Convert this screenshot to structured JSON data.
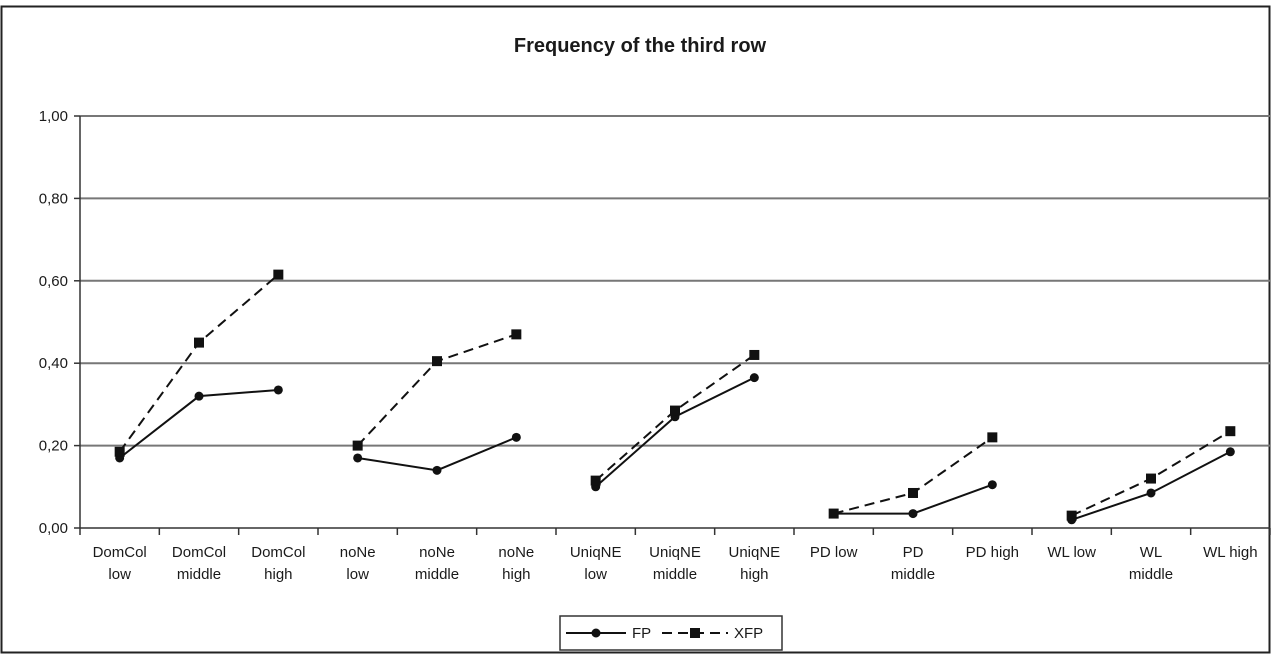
{
  "chart_data": {
    "type": "line",
    "title": "Frequency of the third row",
    "xlabel": "",
    "ylabel": "",
    "ylim": [
      0,
      1
    ],
    "yticks": [
      "0,00",
      "0,20",
      "0,40",
      "0,60",
      "0,80",
      "1,00"
    ],
    "ytick_values": [
      0,
      0.2,
      0.4,
      0.6,
      0.8,
      1.0
    ],
    "grid": true,
    "legend_position": "bottom-center",
    "categories": [
      [
        "DomCol",
        "low"
      ],
      [
        "DomCol",
        "middle"
      ],
      [
        "DomCol",
        "high"
      ],
      [
        "noNe",
        "low"
      ],
      [
        "noNe",
        "middle"
      ],
      [
        "noNe",
        "high"
      ],
      [
        "UniqNE",
        "low"
      ],
      [
        "UniqNE",
        "middle"
      ],
      [
        "UniqNE",
        "high"
      ],
      [
        "PD low"
      ],
      [
        "PD",
        "middle"
      ],
      [
        "PD high"
      ],
      [
        "WL low"
      ],
      [
        "WL",
        "middle"
      ],
      [
        "WL high"
      ]
    ],
    "groups": [
      [
        0,
        1,
        2
      ],
      [
        3,
        4,
        5
      ],
      [
        6,
        7,
        8
      ],
      [
        9,
        10,
        11
      ],
      [
        12,
        13,
        14
      ]
    ],
    "series": [
      {
        "name": "FP",
        "style": "solid",
        "marker": "circle",
        "color": "#111111",
        "values": [
          0.17,
          0.32,
          0.335,
          0.17,
          0.14,
          0.22,
          0.1,
          0.27,
          0.365,
          0.035,
          0.035,
          0.105,
          0.02,
          0.085,
          0.185
        ]
      },
      {
        "name": "XFP",
        "style": "dashed",
        "marker": "square",
        "color": "#111111",
        "values": [
          0.185,
          0.45,
          0.615,
          0.2,
          0.405,
          0.47,
          0.115,
          0.285,
          0.42,
          0.035,
          0.085,
          0.22,
          0.03,
          0.12,
          0.235
        ]
      }
    ]
  }
}
